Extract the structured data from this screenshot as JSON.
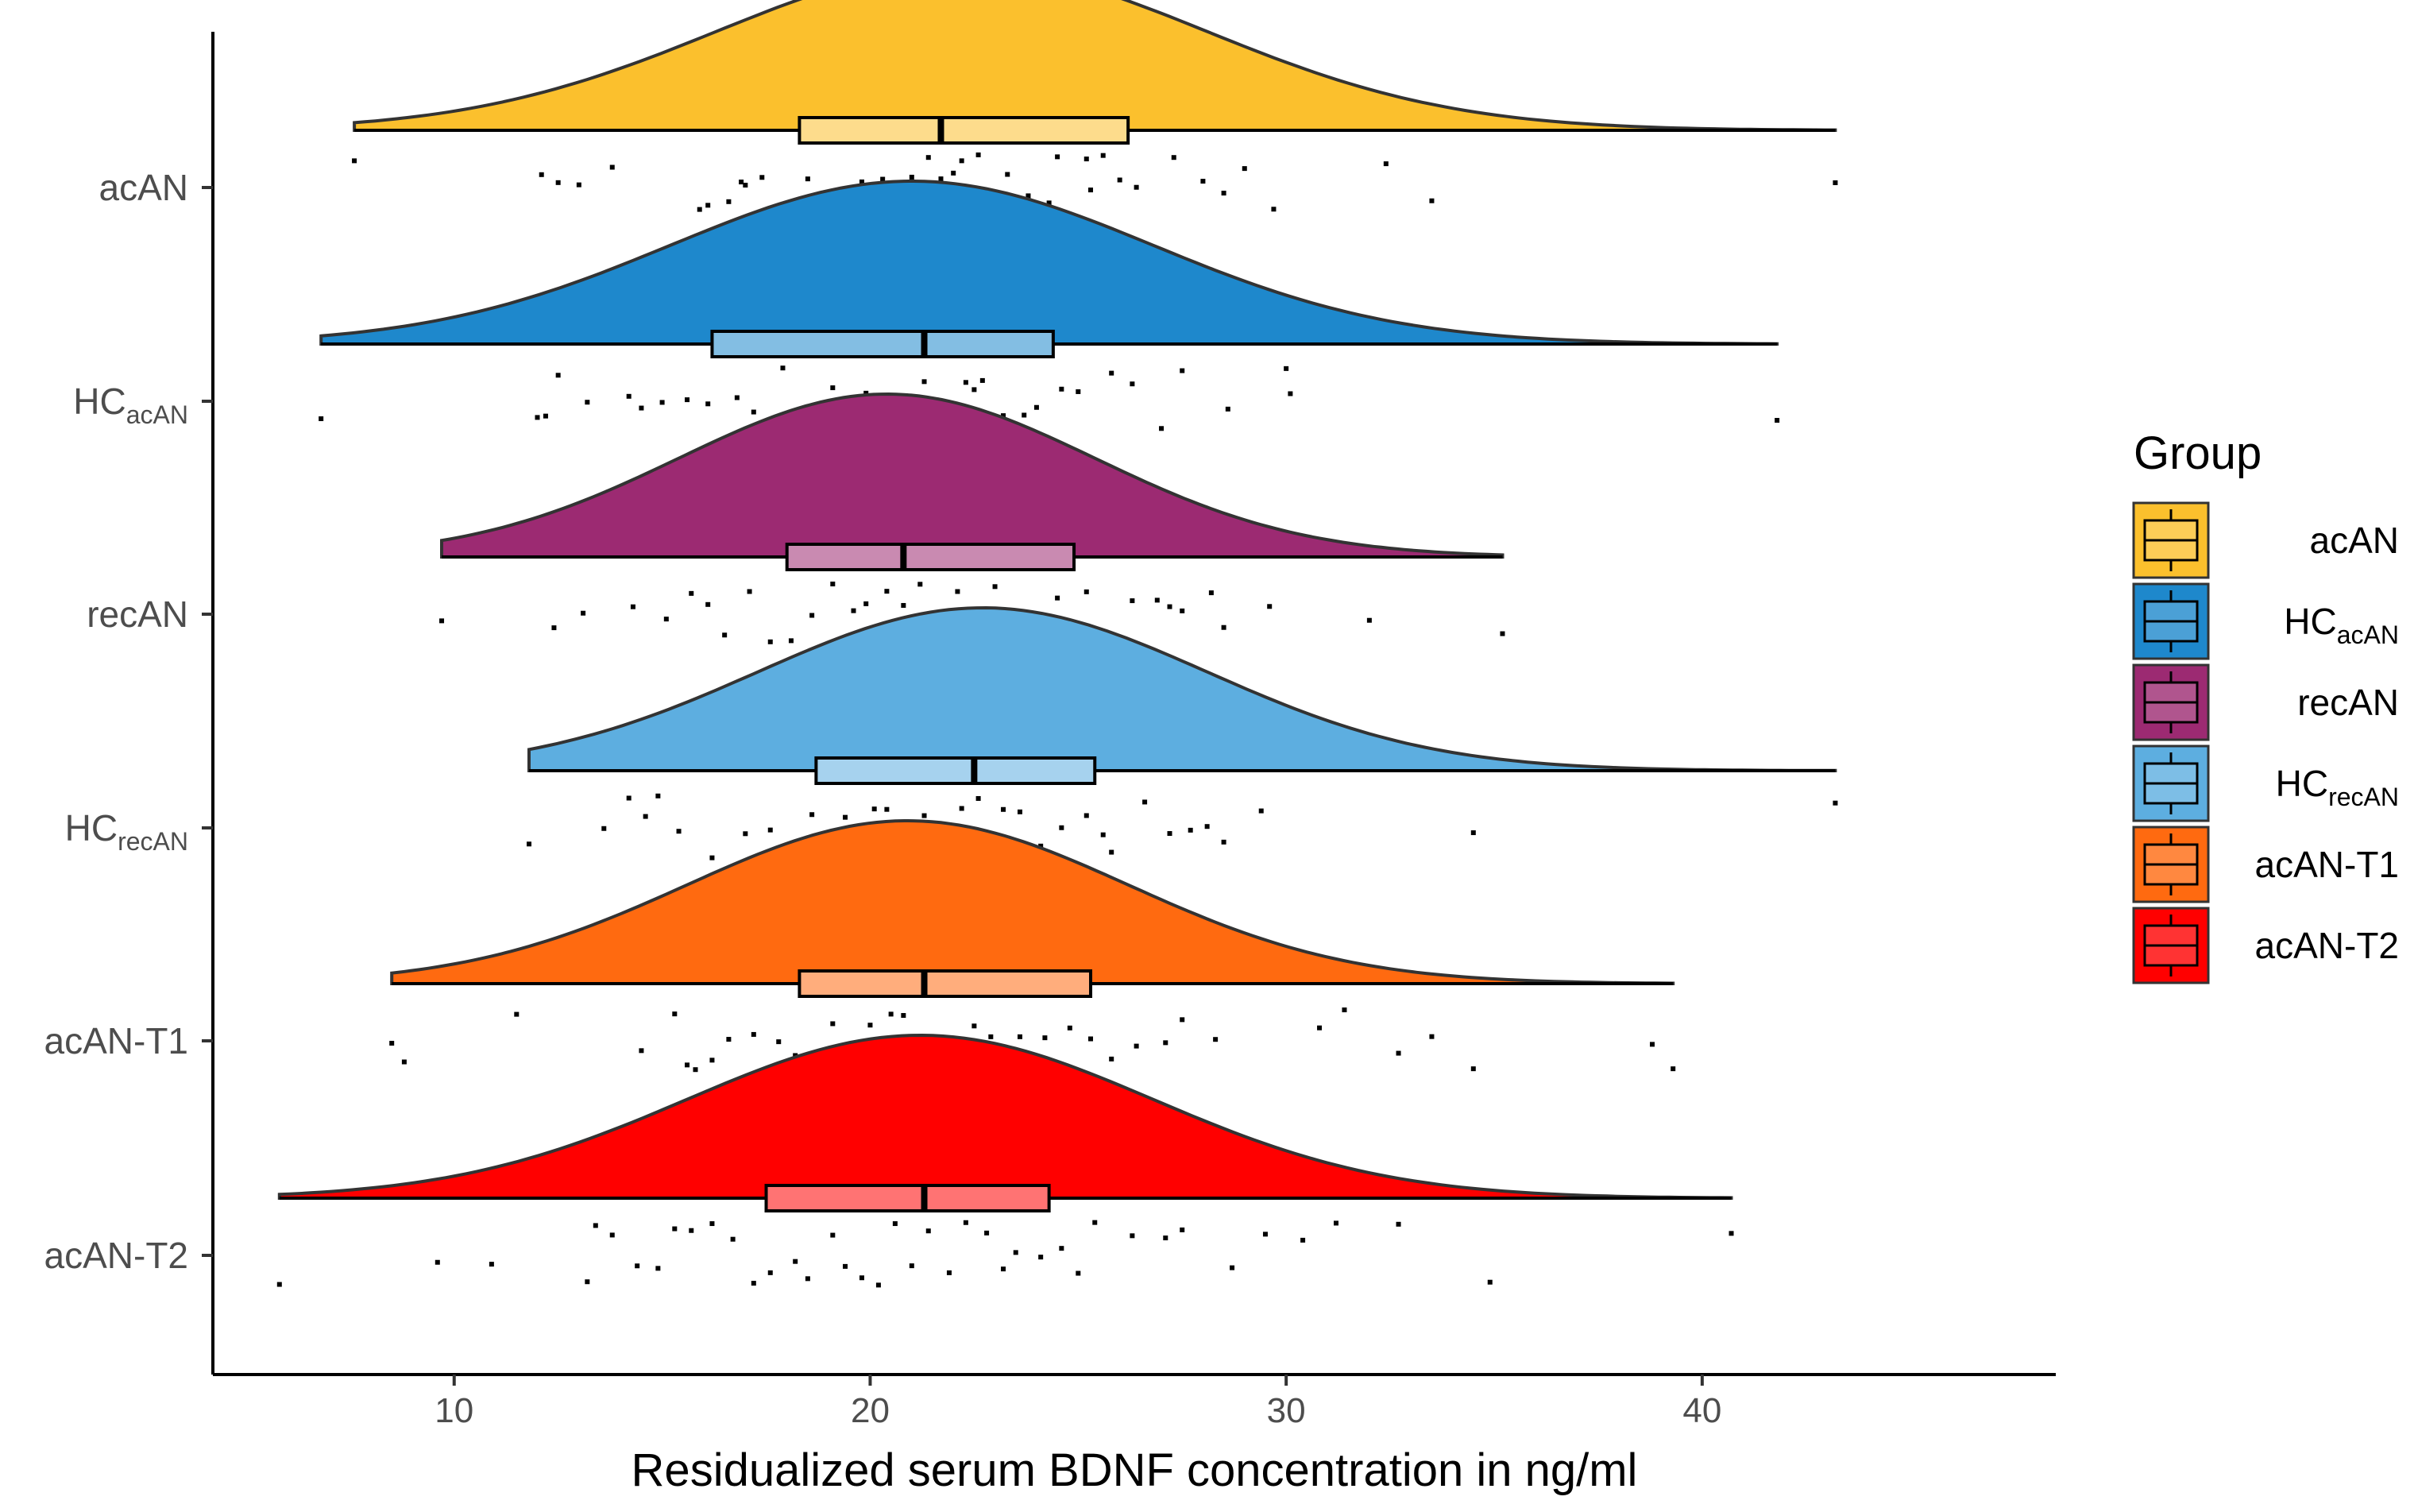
{
  "chart_data": {
    "type": "raincloud",
    "title": "",
    "xlabel": "Residualized serum BDNF concentration in ng/ml",
    "ylabel": "",
    "xlim": [
      4.2,
      48.5
    ],
    "xticks": [
      10,
      20,
      30,
      40
    ],
    "grid": false,
    "legend": {
      "title": "Group",
      "position": "right"
    },
    "series": [
      {
        "name": "acAN",
        "main": "acAN",
        "sub": "",
        "color": "#FBC02D",
        "density_mean": 22.2,
        "density_sd": 5.9,
        "box": {
          "min": 7.6,
          "q1": 18.3,
          "median": 21.7,
          "q3": 26.2,
          "max": 43.2
        },
        "points": [
          7.6,
          13.0,
          12.1,
          12.5,
          13.8,
          15.9,
          16.1,
          16.6,
          16.9,
          17.0,
          17.4,
          18.5,
          19.5,
          19.8,
          20.3,
          20.5,
          21.0,
          21.2,
          21.4,
          21.7,
          21.9,
          22.0,
          22.2,
          22.6,
          23.3,
          23.8,
          24.3,
          24.5,
          25.2,
          25.3,
          25.6,
          26.0,
          26.4,
          27.3,
          28.0,
          28.5,
          29.0,
          29.7,
          32.4,
          33.5,
          43.2
        ]
      },
      {
        "name": "HC_acAN",
        "main": "HC",
        "sub": "acAN",
        "color": "#1E88CC",
        "density_mean": 21.0,
        "density_sd": 5.8,
        "box": {
          "min": 6.8,
          "q1": 16.2,
          "median": 21.3,
          "q3": 24.4,
          "max": 41.8
        },
        "points": [
          6.8,
          12.0,
          12.2,
          12.5,
          13.2,
          14.2,
          14.5,
          15.0,
          15.6,
          16.1,
          16.8,
          17.2,
          17.9,
          18.4,
          18.8,
          19.1,
          19.4,
          19.6,
          19.9,
          20.3,
          20.8,
          21.3,
          21.5,
          21.6,
          21.9,
          22.3,
          22.5,
          22.7,
          23.2,
          23.7,
          24.0,
          24.6,
          25.0,
          25.8,
          26.3,
          27.0,
          27.5,
          28.6,
          30.0,
          30.1,
          41.8
        ]
      },
      {
        "name": "recAN",
        "main": "recAN",
        "sub": "",
        "color": "#9C2A72",
        "density_mean": 20.4,
        "density_sd": 5.0,
        "box": {
          "min": 9.7,
          "q1": 18.0,
          "median": 20.8,
          "q3": 24.9,
          "max": 35.2
        },
        "points": [
          9.7,
          12.4,
          13.1,
          14.3,
          15.1,
          15.7,
          16.1,
          16.5,
          17.1,
          17.6,
          18.1,
          18.6,
          19.1,
          19.3,
          19.6,
          19.9,
          20.4,
          20.8,
          21.0,
          21.2,
          21.6,
          22.1,
          22.6,
          23.0,
          23.6,
          24.0,
          24.5,
          25.2,
          25.8,
          26.3,
          26.9,
          27.2,
          27.5,
          28.2,
          28.5,
          29.6,
          32.0,
          35.2
        ]
      },
      {
        "name": "HC_recAN",
        "main": "HC",
        "sub": "recAN",
        "color": "#5DAEE0",
        "density_mean": 22.7,
        "density_sd": 5.4,
        "box": {
          "min": 11.8,
          "q1": 18.7,
          "median": 22.5,
          "q3": 25.4,
          "max": 43.2
        },
        "points": [
          11.8,
          13.6,
          14.2,
          14.6,
          14.9,
          15.4,
          16.2,
          17.0,
          17.6,
          18.2,
          18.6,
          19.0,
          19.4,
          19.6,
          20.1,
          20.4,
          21.3,
          21.6,
          22.2,
          22.6,
          23.2,
          23.6,
          24.1,
          24.6,
          25.2,
          25.6,
          25.8,
          26.6,
          27.2,
          27.7,
          28.1,
          28.5,
          29.4,
          34.5,
          43.2
        ]
      },
      {
        "name": "acAN-T1",
        "main": "acAN-T1",
        "sub": "",
        "color": "#FF6A10",
        "density_mean": 20.9,
        "density_sd": 5.3,
        "box": {
          "min": 8.5,
          "q1": 18.3,
          "median": 21.3,
          "q3": 25.3,
          "max": 39.3
        },
        "points": [
          8.5,
          8.8,
          11.5,
          14.5,
          15.3,
          15.6,
          15.8,
          16.2,
          16.6,
          17.2,
          17.8,
          18.2,
          18.7,
          19.1,
          19.6,
          20.0,
          20.5,
          20.8,
          21.2,
          21.5,
          22.0,
          22.5,
          22.9,
          23.2,
          23.6,
          24.2,
          24.8,
          25.3,
          25.8,
          26.4,
          27.1,
          27.5,
          28.3,
          30.8,
          31.4,
          32.7,
          33.5,
          34.5,
          38.8,
          39.3
        ]
      },
      {
        "name": "acAN-T2",
        "main": "acAN-T2",
        "sub": "",
        "color": "#FF0000",
        "density_mean": 21.2,
        "density_sd": 5.6,
        "box": {
          "min": 5.8,
          "q1": 17.5,
          "median": 21.3,
          "q3": 24.3,
          "max": 40.7
        },
        "points": [
          5.8,
          9.6,
          10.9,
          13.2,
          13.4,
          13.8,
          14.4,
          14.9,
          15.3,
          15.7,
          16.2,
          16.7,
          17.2,
          17.6,
          18.2,
          18.5,
          19.1,
          19.4,
          19.8,
          20.2,
          20.6,
          21.0,
          21.4,
          21.9,
          22.3,
          22.8,
          23.2,
          23.5,
          24.1,
          24.6,
          25.0,
          25.4,
          26.3,
          27.1,
          27.5,
          28.7,
          29.5,
          30.4,
          31.2,
          32.7,
          34.9,
          40.7
        ]
      }
    ]
  }
}
